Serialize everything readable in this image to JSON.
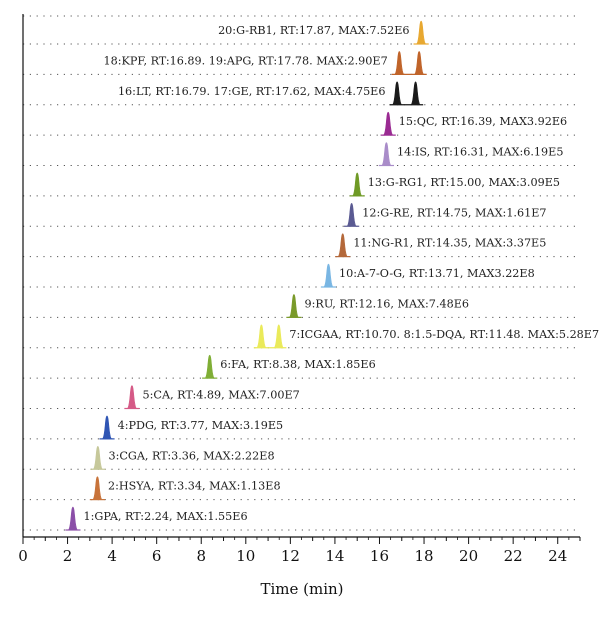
{
  "chart_data": {
    "type": "line",
    "xlabel": "Time (min)",
    "xlim": [
      0,
      25
    ],
    "xticks": [
      0,
      2,
      4,
      6,
      8,
      10,
      12,
      14,
      16,
      18,
      20,
      22,
      24
    ],
    "grid": "dotted horizontal",
    "traces": [
      {
        "label": "1:GPA, RT:2.24, MAX:1.55E6",
        "peaks": [
          {
            "rt": 2.24,
            "color": "#8b4fa8"
          }
        ]
      },
      {
        "label": "2:HSYA, RT:3.34, MAX:1.13E8",
        "peaks": [
          {
            "rt": 3.34,
            "color": "#c8733a"
          }
        ]
      },
      {
        "label": "3:CGA, RT:3.36, MAX:2.22E8",
        "peaks": [
          {
            "rt": 3.36,
            "color": "#c6c89a"
          }
        ]
      },
      {
        "label": "4:PDG, RT:3.77, MAX:3.19E5",
        "peaks": [
          {
            "rt": 3.77,
            "color": "#2f55b4"
          }
        ]
      },
      {
        "label": "5:CA, RT:4.89, MAX:7.00E7",
        "peaks": [
          {
            "rt": 4.89,
            "color": "#d55a86"
          }
        ]
      },
      {
        "label": "6:FA, RT:8.38, MAX:1.85E6",
        "peaks": [
          {
            "rt": 8.38,
            "color": "#7fae35"
          }
        ]
      },
      {
        "label": "7:ICGAA, RT:10.70. 8:1.5-DQA, RT:11.48. MAX:5.28E7",
        "peaks": [
          {
            "rt": 10.7,
            "color": "#eaea5a"
          },
          {
            "rt": 11.48,
            "color": "#eaea5a"
          }
        ]
      },
      {
        "label": "9:RU, RT:12.16, MAX:7.48E6",
        "peaks": [
          {
            "rt": 12.16,
            "color": "#7a9a2a"
          }
        ]
      },
      {
        "label": "10:A-7-O-G, RT:13.71, MAX3.22E8",
        "peaks": [
          {
            "rt": 13.71,
            "color": "#79b6e3"
          }
        ]
      },
      {
        "label": "11:NG-R1, RT:14.35, MAX:3.37E5",
        "peaks": [
          {
            "rt": 14.35,
            "color": "#b4683a"
          }
        ]
      },
      {
        "label": "12:G-RE, RT:14.75, MAX:1.61E7",
        "peaks": [
          {
            "rt": 14.75,
            "color": "#5a5a92"
          }
        ]
      },
      {
        "label": "13:G-RG1, RT:15.00, MAX:3.09E5",
        "peaks": [
          {
            "rt": 15.0,
            "color": "#6f9a25"
          }
        ]
      },
      {
        "label": "14:IS, RT:16.31, MAX:6.19E5",
        "peaks": [
          {
            "rt": 16.31,
            "color": "#a98cc9"
          }
        ]
      },
      {
        "label": "15:QC, RT:16.39, MAX3.92E6",
        "peaks": [
          {
            "rt": 16.39,
            "color": "#9a2a92"
          }
        ]
      },
      {
        "label": "16:LT, RT:16.79. 17:GE, RT:17.62, MAX:4.75E6",
        "peaks": [
          {
            "rt": 16.79,
            "color": "#1a1a1a"
          },
          {
            "rt": 17.62,
            "color": "#1a1a1a"
          }
        ]
      },
      {
        "label": "18:KPF, RT:16.89. 19:APG, RT:17.78. MAX:2.90E7",
        "peaks": [
          {
            "rt": 16.89,
            "color": "#c0642a"
          },
          {
            "rt": 17.78,
            "color": "#c0642a"
          }
        ]
      },
      {
        "label": "20:G-RB1, RT:17.87, MAX:7.52E6",
        "peaks": [
          {
            "rt": 17.87,
            "color": "#e8a830"
          }
        ]
      }
    ]
  }
}
